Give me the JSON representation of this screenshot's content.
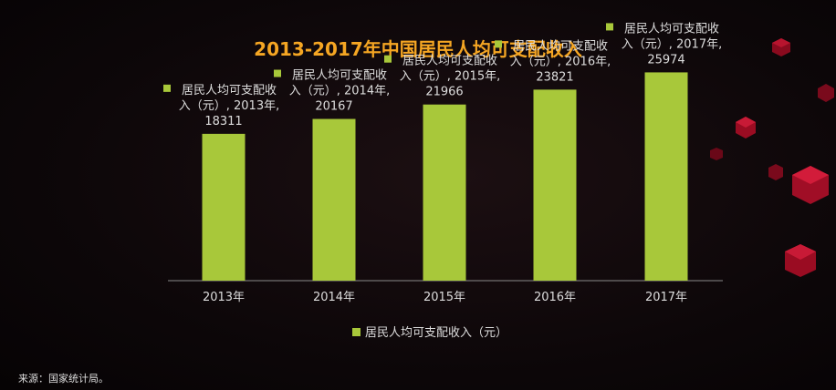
{
  "chart_data": {
    "type": "bar",
    "title": "2013-2017年中国居民人均可支配收入",
    "categories": [
      "2013年",
      "2014年",
      "2015年",
      "2016年",
      "2017年"
    ],
    "series": [
      {
        "name": "居民人均可支配收入（元）",
        "values": [
          18311,
          20167,
          21966,
          23821,
          25974
        ]
      }
    ],
    "data_labels": [
      [
        "居民人均可支配收",
        "入（元）, 2013年,",
        "18311"
      ],
      [
        "居民人均可支配收",
        "入（元）, 2014年,",
        "20167"
      ],
      [
        "居民人均可支配收",
        "入（元）, 2015年,",
        "21966"
      ],
      [
        "居民人均可支配收",
        "入（元）, 2016年,",
        "23821"
      ],
      [
        "居民人均可支配收",
        "入（元）, 2017年,",
        "25974"
      ]
    ],
    "ylim": [
      0,
      30000
    ],
    "grid": false,
    "legend_position": "bottom",
    "bar_color": "#a8c83a"
  },
  "source": "来源：国家统计局。",
  "colors": {
    "title": "#f5a623",
    "text": "#dddddd",
    "axis": "#8a8a8a",
    "cube": "#b0102a"
  }
}
